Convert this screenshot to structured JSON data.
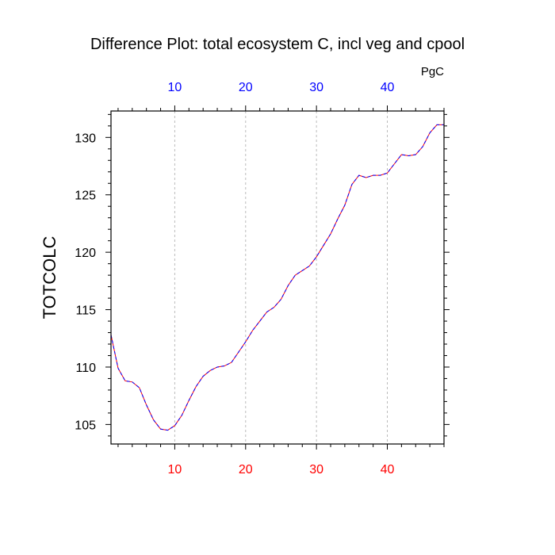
{
  "chart_data": {
    "type": "line",
    "title": "Difference Plot: total ecosystem C, incl veg and cpool",
    "ylabel": "TOTCOLC",
    "units": "PgC",
    "xlim": [
      1,
      48
    ],
    "ylim": [
      103.3,
      132.3
    ],
    "x_ticks_bottom": [
      10,
      20,
      30,
      40
    ],
    "x_ticks_top": [
      10,
      20,
      30,
      40
    ],
    "y_ticks": [
      105,
      110,
      115,
      120,
      125,
      130
    ],
    "grid": "vertical-dashed",
    "colors": {
      "bottom_tick_labels": "#ff0000",
      "top_tick_labels": "#0000ff",
      "line_primary": "#ff0000",
      "line_secondary": "#0000ff",
      "grid": "#bbbbbb"
    },
    "series": [
      {
        "x": [
          1,
          2,
          3,
          4,
          5,
          6,
          7,
          8,
          9,
          10,
          11,
          12,
          13,
          14,
          15,
          16,
          17,
          18,
          19,
          20,
          21,
          22,
          23,
          24,
          25,
          26,
          27,
          28,
          29,
          30,
          31,
          32,
          33,
          34,
          35,
          36,
          37,
          38,
          39,
          40,
          41,
          42,
          43,
          44,
          45,
          46,
          47,
          48
        ],
        "values": [
          112.8,
          109.9,
          108.8,
          108.7,
          108.2,
          106.7,
          105.4,
          104.6,
          104.5,
          104.9,
          105.8,
          107.1,
          108.3,
          109.2,
          109.7,
          110.0,
          110.1,
          110.4,
          111.3,
          112.2,
          113.2,
          114.0,
          114.8,
          115.2,
          115.9,
          117.1,
          118.0,
          118.4,
          118.8,
          119.6,
          120.6,
          121.6,
          122.9,
          124.1,
          125.9,
          126.7,
          126.5,
          126.7,
          126.7,
          126.9,
          127.7,
          128.5,
          128.4,
          128.5,
          129.2,
          130.4,
          131.1,
          131.1
        ]
      }
    ]
  }
}
